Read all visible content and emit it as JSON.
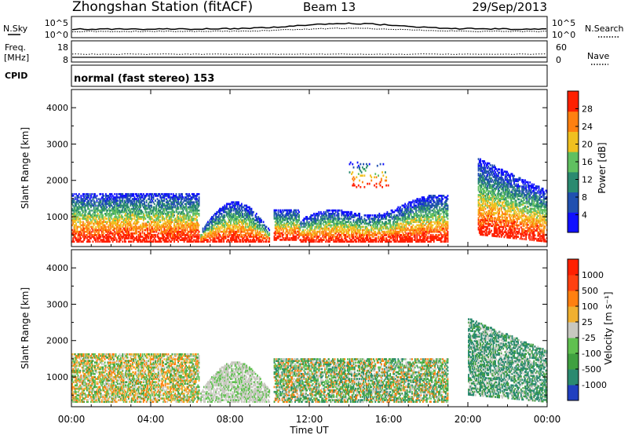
{
  "header": {
    "title": "Zhongshan Station (fitACF)",
    "beam": "Beam 13",
    "date": "29/Sep/2013"
  },
  "noise_panel": {
    "left_label": "N.Sky",
    "right_label": "N.Search",
    "left_ticks": [
      "10^5",
      "10^0"
    ],
    "right_ticks": [
      "10^5",
      "10^0"
    ]
  },
  "freq_panel": {
    "left_label_1": "Freq.",
    "left_label_2": "[MHz]",
    "right_label": "Nave",
    "left_ticks": [
      "18",
      "8"
    ],
    "right_ticks": [
      "60",
      "0"
    ]
  },
  "cpid": {
    "label": "CPID",
    "text": "normal (fast stereo) 153"
  },
  "chart_data": [
    {
      "type": "heatmap",
      "panel": "power",
      "ylabel": "Slant Range [km]",
      "ylim": [
        180,
        4500
      ],
      "y_ticks": [
        "1000",
        "2000",
        "3000",
        "4000"
      ],
      "y_tick_values": [
        1000,
        2000,
        3000,
        4000
      ],
      "colorbar_label": "Power [dB]",
      "colorbar_ticks": [
        "4",
        "8",
        "12",
        "16",
        "20",
        "24",
        "28"
      ],
      "colorbar_tick_values": [
        4,
        8,
        12,
        16,
        20,
        24,
        28
      ],
      "colorbar_range": [
        0,
        32
      ],
      "colors": [
        "#1010ff",
        "#2050b0",
        "#2a8a70",
        "#60c060",
        "#f0c020",
        "#ff8010",
        "#ff2000"
      ],
      "blobs": [
        {
          "t": [
            0.0,
            6.4
          ],
          "r": [
            300,
            1650
          ],
          "shape": "layered"
        },
        {
          "t": [
            6.5,
            10.0
          ],
          "r": [
            300,
            1400
          ],
          "shape": "arc"
        },
        {
          "t": [
            10.2,
            11.5
          ],
          "r": [
            350,
            1200
          ],
          "shape": "patchy"
        },
        {
          "t": [
            11.5,
            19.0
          ],
          "r": [
            300,
            1550
          ],
          "shape": "rising"
        },
        {
          "t": [
            14.0,
            16.0
          ],
          "r": [
            1800,
            2600
          ],
          "shape": "sparse"
        },
        {
          "t": [
            20.5,
            24.0
          ],
          "r": [
            300,
            2600
          ],
          "shape": "descending"
        }
      ]
    },
    {
      "type": "heatmap",
      "panel": "velocity",
      "ylabel": "Slant Range [km]",
      "xlabel": "Time UT",
      "ylim": [
        180,
        4500
      ],
      "xlim": [
        "00:00",
        "24:00"
      ],
      "y_ticks": [
        "1000",
        "2000",
        "3000",
        "4000"
      ],
      "y_tick_values": [
        1000,
        2000,
        3000,
        4000
      ],
      "x_ticks": [
        "00:00",
        "04:00",
        "08:00",
        "12:00",
        "16:00",
        "20:00",
        "00:00"
      ],
      "x_tick_values": [
        0,
        4,
        8,
        12,
        16,
        20,
        24
      ],
      "colorbar_label": "Velocity [m s⁻¹]",
      "colorbar_ticks": [
        "1000",
        "500",
        "100",
        "25",
        "-25",
        "-100",
        "-500",
        "-1000"
      ],
      "colors": [
        "#2040c0",
        "#2a8a70",
        "#40a040",
        "#60c050",
        "#c8c8c0",
        "#f0b030",
        "#ff8010",
        "#ff4010",
        "#ff2000"
      ],
      "blobs": [
        {
          "t": [
            0.0,
            6.4
          ],
          "r": [
            300,
            1650
          ],
          "mix": "green-orange"
        },
        {
          "t": [
            6.5,
            10.0
          ],
          "r": [
            300,
            1400
          ],
          "mix": "grey-green"
        },
        {
          "t": [
            10.2,
            19.0
          ],
          "r": [
            300,
            1500
          ],
          "mix": "green"
        },
        {
          "t": [
            20.0,
            24.0
          ],
          "r": [
            300,
            2600
          ],
          "mix": "darkgreen-grey"
        }
      ]
    }
  ]
}
